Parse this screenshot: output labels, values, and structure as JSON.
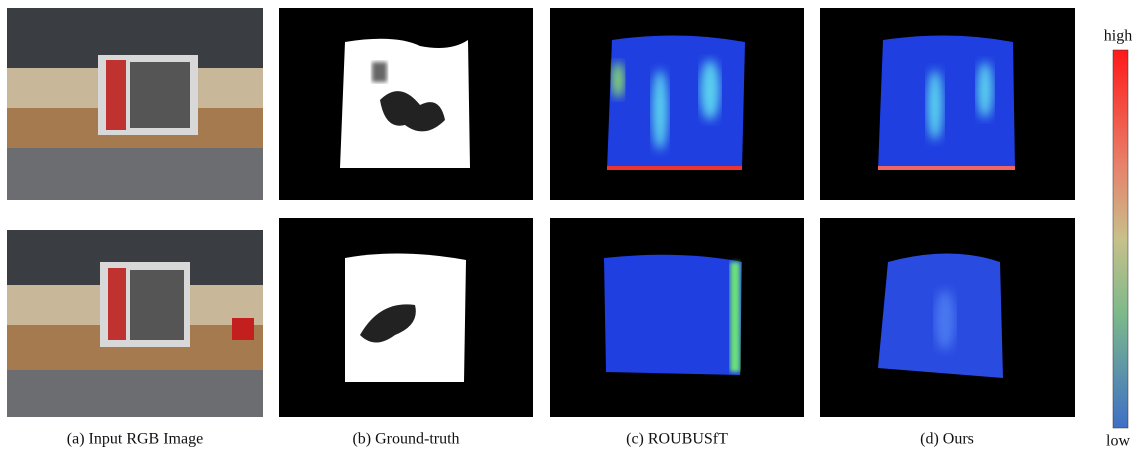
{
  "captions": [
    "(a) Input RGB Image",
    "(b) Ground-truth",
    "(c) ROUBUSfT",
    "(d) Ours"
  ],
  "colorbar": {
    "high": "high",
    "low": "low"
  }
}
